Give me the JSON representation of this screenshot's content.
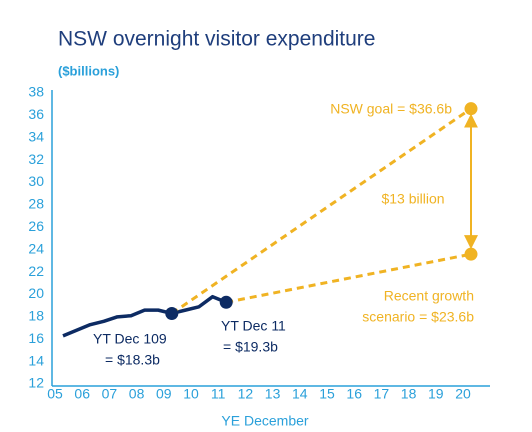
{
  "chart_data": {
    "type": "line",
    "title": "NSW overnight visitor expenditure",
    "subtitle": "($billions)",
    "x_label": "YE December",
    "xlim": [
      5,
      20
    ],
    "ylim": [
      12,
      38
    ],
    "yticks": [
      12,
      14,
      16,
      18,
      20,
      22,
      24,
      26,
      28,
      30,
      32,
      34,
      36,
      38
    ],
    "xticks": [
      {
        "value": 5,
        "label": "05"
      },
      {
        "value": 6,
        "label": "06"
      },
      {
        "value": 7,
        "label": "07"
      },
      {
        "value": 8,
        "label": "08"
      },
      {
        "value": 9,
        "label": "09"
      },
      {
        "value": 10,
        "label": "10"
      },
      {
        "value": 11,
        "label": "11"
      },
      {
        "value": 12,
        "label": "12"
      },
      {
        "value": 13,
        "label": "13"
      },
      {
        "value": 14,
        "label": "14"
      },
      {
        "value": 15,
        "label": "15"
      },
      {
        "value": 16,
        "label": "16"
      },
      {
        "value": 17,
        "label": "17"
      },
      {
        "value": 18,
        "label": "18"
      },
      {
        "value": 19,
        "label": "19"
      },
      {
        "value": 20,
        "label": "20"
      }
    ],
    "series": [
      {
        "color": "#0d2b63",
        "dashed": false,
        "x": [
          5,
          5.5,
          6,
          6.5,
          7,
          7.5,
          8,
          8.5,
          9,
          9.5,
          10,
          10.5,
          11
        ],
        "values": [
          16.3,
          16.8,
          17.3,
          17.6,
          18.0,
          18.1,
          18.6,
          18.6,
          18.3,
          18.6,
          18.9,
          19.8,
          19.3
        ]
      },
      {
        "color": "#f0b323",
        "dashed": true,
        "x": [
          9,
          20
        ],
        "values": [
          18.3,
          36.6
        ],
        "marker_colors": [
          "#0d2b63",
          "#f0b323"
        ]
      },
      {
        "color": "#f0b323",
        "dashed": true,
        "x": [
          11,
          20
        ],
        "values": [
          19.3,
          23.6
        ],
        "marker_colors": [
          "#0d2b63",
          "#f0b323"
        ]
      }
    ],
    "annotations": [
      {
        "lines": [
          "NSW goal = $36.6b"
        ],
        "color": "#f0b323"
      },
      {
        "lines": [
          "$13 billion"
        ],
        "color": "#f0b323"
      },
      {
        "lines": [
          "Recent growth",
          "scenario = $23.6b"
        ],
        "color": "#f0b323"
      },
      {
        "lines": [
          "YT Dec 109",
          "= $18.3b"
        ],
        "color": "#0d2b63"
      },
      {
        "lines": [
          "YT Dec 11",
          "= $19.3b"
        ],
        "color": "#0d2b63"
      }
    ]
  }
}
